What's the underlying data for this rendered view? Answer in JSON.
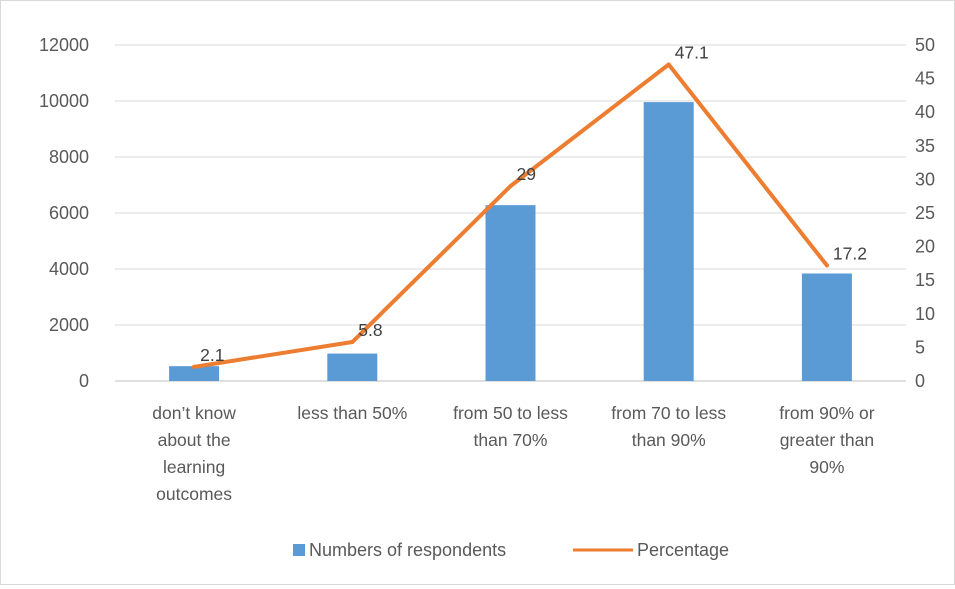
{
  "chart_data": {
    "type": "bar",
    "categories": [
      [
        "don’t know",
        "about the",
        "learning",
        "outcomes"
      ],
      [
        "less than 50%"
      ],
      [
        "from 50 to less",
        "than 70%"
      ],
      [
        "from 70 to less",
        "than 90%"
      ],
      [
        "from 90% or",
        "greater than",
        "90%"
      ]
    ],
    "series": [
      {
        "name": "Numbers of respondents",
        "type": "bar",
        "axis": "left",
        "color": "#5B9BD5",
        "values": [
          530,
          980,
          6280,
          9960,
          3840
        ]
      },
      {
        "name": "Percentage",
        "type": "line",
        "axis": "right",
        "color": "#ED7D31",
        "values": [
          2.1,
          5.8,
          29,
          47.1,
          17.2
        ],
        "data_labels": [
          "2.1",
          "5.8",
          "29",
          "47.1",
          "17.2"
        ]
      }
    ],
    "y_left": {
      "lim": [
        0,
        12000
      ],
      "ticks": [
        "0",
        "2000",
        "4000",
        "6000",
        "8000",
        "10000",
        "12000"
      ]
    },
    "y_right": {
      "lim": [
        0,
        50
      ],
      "ticks": [
        "0",
        "5",
        "10",
        "15",
        "20",
        "25",
        "30",
        "35",
        "40",
        "45",
        "50"
      ]
    },
    "grid": "horizontal",
    "legend_position": "bottom"
  }
}
